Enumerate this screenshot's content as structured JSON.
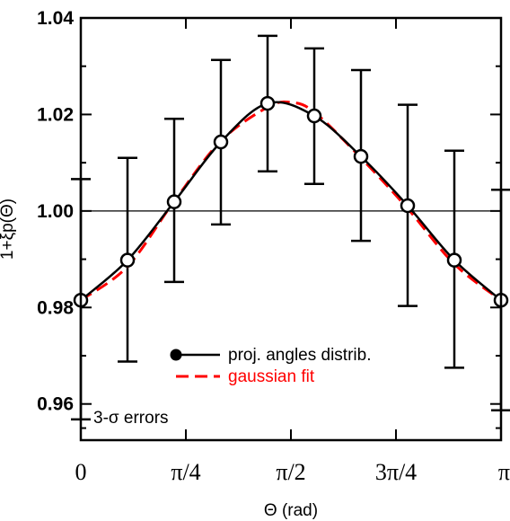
{
  "chart_data": {
    "type": "line",
    "title": "",
    "xlabel": "Θ (rad)",
    "ylabel": "1+ξp(Θ)",
    "xlim": [
      0,
      3.14159
    ],
    "ylim": [
      0.9525,
      1.04
    ],
    "reference_line_y": 1.0,
    "x_ticks": [
      {
        "value": 0,
        "label": "0"
      },
      {
        "value": 0.7854,
        "label": "π/4"
      },
      {
        "value": 1.5708,
        "label": "π/2"
      },
      {
        "value": 2.3562,
        "label": "3π/4"
      },
      {
        "value": 3.14159,
        "label": "π"
      }
    ],
    "y_ticks": [
      {
        "value": 0.96,
        "label": "0.96"
      },
      {
        "value": 0.98,
        "label": "0.98"
      },
      {
        "value": 1.0,
        "label": "1.00"
      },
      {
        "value": 1.02,
        "label": "1.02"
      },
      {
        "value": 1.04,
        "label": "1.04"
      }
    ],
    "series": [
      {
        "name": "proj. angles distrib.",
        "color": "#000000",
        "marker": "open-circle",
        "x": [
          0.0,
          0.3491,
          0.6981,
          1.0472,
          1.3963,
          1.7453,
          2.0944,
          2.4435,
          2.7925,
          3.1416
        ],
        "y": [
          0.9815,
          0.9898,
          1.0019,
          1.0143,
          1.0223,
          1.0197,
          1.0113,
          1.0011,
          0.9898,
          0.9815
        ],
        "err_low": [
          0.9568,
          0.9688,
          0.9853,
          0.9972,
          1.0082,
          1.0056,
          0.9938,
          0.9803,
          0.9675,
          0.9587
        ],
        "err_high": [
          1.0066,
          1.011,
          1.0191,
          1.0313,
          1.0363,
          1.0337,
          1.0292,
          1.022,
          1.0125,
          1.0044
        ]
      },
      {
        "name": "gaussian fit",
        "color": "#ff0000",
        "style": "dashed",
        "x": [
          0.0,
          0.3491,
          0.6981,
          1.0472,
          1.3963,
          1.5708,
          1.7453,
          2.0944,
          2.4435,
          2.7925,
          3.1416
        ],
        "y": [
          0.9815,
          0.9885,
          1.002,
          1.0145,
          1.0215,
          1.0225,
          1.0205,
          1.011,
          1.0005,
          0.989,
          0.9815
        ]
      }
    ],
    "legend": {
      "position": "bottom-center",
      "entries": [
        {
          "label": "proj. angles distrib.",
          "color": "#000000"
        },
        {
          "label": "gaussian fit",
          "color": "#ff0000"
        }
      ]
    },
    "annotations": [
      "3-σ errors"
    ],
    "grid": false
  }
}
